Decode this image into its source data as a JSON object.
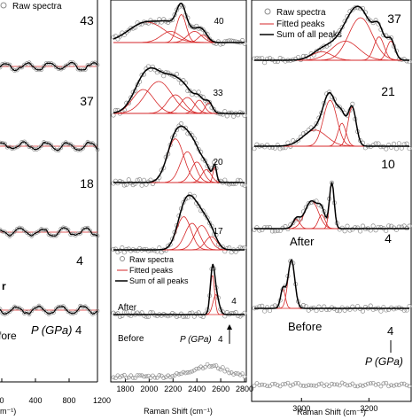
{
  "colors": {
    "raw": "#8c8c8c",
    "fit": "#d62728",
    "sum": "#000000",
    "baseline": "#d62728"
  },
  "chart_data": [
    {
      "type": "line",
      "panel": "left",
      "x_tick_labels": [
        "0",
        "400",
        "800",
        "1200"
      ],
      "xlabel_fragment": "m⁻¹)",
      "pressure_labels": [
        "43",
        "37",
        "18",
        "4"
      ],
      "partial_labels": {
        "before": "fore",
        "after": "r",
        "raw": "Raw spectra"
      },
      "pressure_axis_label": "P (GPa)",
      "pressure_axis_value": "4"
    },
    {
      "type": "line",
      "panel": "middle",
      "xlabel": "Raman Shift (cm⁻¹)",
      "xlim": [
        1700,
        2800
      ],
      "x_ticks": [
        1800,
        2000,
        2200,
        2400,
        2600,
        2800
      ],
      "x_tick_labels": [
        "1800",
        "2000",
        "2200",
        "2400",
        "2600",
        "2800"
      ],
      "pressure_labels": [
        "40",
        "33",
        "20",
        "17",
        "4"
      ],
      "state_labels": {
        "after": "After",
        "before": "Before"
      },
      "legend": [
        "Raw spectra",
        "Fitted peaks",
        "Sum of all peaks"
      ],
      "pressure_axis_label": "P (GPa)",
      "pressure_axis_value": "4",
      "series": [
        {
          "pressure": "40",
          "peaks": [
            [
              1980,
              0.55,
              150
            ],
            [
              2180,
              0.3,
              80
            ],
            [
              2270,
              0.75,
              40
            ],
            [
              2380,
              0.3,
              60
            ],
            [
              2450,
              0.2,
              40
            ]
          ]
        },
        {
          "pressure": "33",
          "peaks": [
            [
              1950,
              0.45,
              90
            ],
            [
              2080,
              0.6,
              110
            ],
            [
              2220,
              0.35,
              70
            ],
            [
              2320,
              0.3,
              60
            ],
            [
              2420,
              0.25,
              40
            ],
            [
              2500,
              0.2,
              30
            ]
          ]
        },
        {
          "pressure": "20",
          "peaks": [
            [
              2220,
              0.85,
              70
            ],
            [
              2320,
              0.6,
              60
            ],
            [
              2400,
              0.4,
              50
            ],
            [
              2480,
              0.25,
              40
            ],
            [
              2550,
              0.3,
              15
            ]
          ]
        },
        {
          "pressure": "17",
          "peaks": [
            [
              2290,
              0.75,
              60
            ],
            [
              2360,
              0.6,
              60
            ],
            [
              2440,
              0.55,
              60
            ],
            [
              2520,
              0.3,
              50
            ]
          ]
        },
        {
          "pressure": "4",
          "peaks": [
            [
              2530,
              1.0,
              18
            ],
            [
              2560,
              0.5,
              25
            ]
          ]
        }
      ]
    },
    {
      "type": "line",
      "panel": "right",
      "xlabel": "Raman Shift (cm⁻¹)",
      "xlim": [
        2860,
        3320
      ],
      "x_ticks": [
        3000,
        3200
      ],
      "x_tick_labels": [
        "3000",
        "3200"
      ],
      "pressure_labels": [
        "37",
        "21",
        "10",
        "4"
      ],
      "state_labels": {
        "after": "After",
        "before": "Before"
      },
      "legend": [
        "Raw spectra",
        "Fitted peaks",
        "Sum of all peaks"
      ],
      "pressure_axis_label": "P (GPa)",
      "pressure_axis_value": "4",
      "series": [
        {
          "pressure": "37",
          "peaks": [
            [
              3060,
              0.2,
              30
            ],
            [
              3130,
              0.45,
              40
            ],
            [
              3175,
              1.0,
              35
            ],
            [
              3230,
              0.55,
              15
            ],
            [
              3265,
              0.45,
              12
            ]
          ]
        },
        {
          "pressure": "21",
          "peaks": [
            [
              3040,
              0.35,
              35
            ],
            [
              3085,
              1.0,
              20
            ],
            [
              3120,
              0.5,
              12
            ],
            [
              3150,
              0.85,
              12
            ]
          ]
        },
        {
          "pressure": "10",
          "peaks": [
            [
              2985,
              0.2,
              10
            ],
            [
              3030,
              0.6,
              20
            ],
            [
              3060,
              0.3,
              10
            ],
            [
              3090,
              1.0,
              7
            ]
          ]
        },
        {
          "pressure": "4",
          "peaks": [
            [
              2945,
              0.4,
              7
            ],
            [
              2970,
              1.0,
              10
            ]
          ]
        }
      ]
    }
  ]
}
